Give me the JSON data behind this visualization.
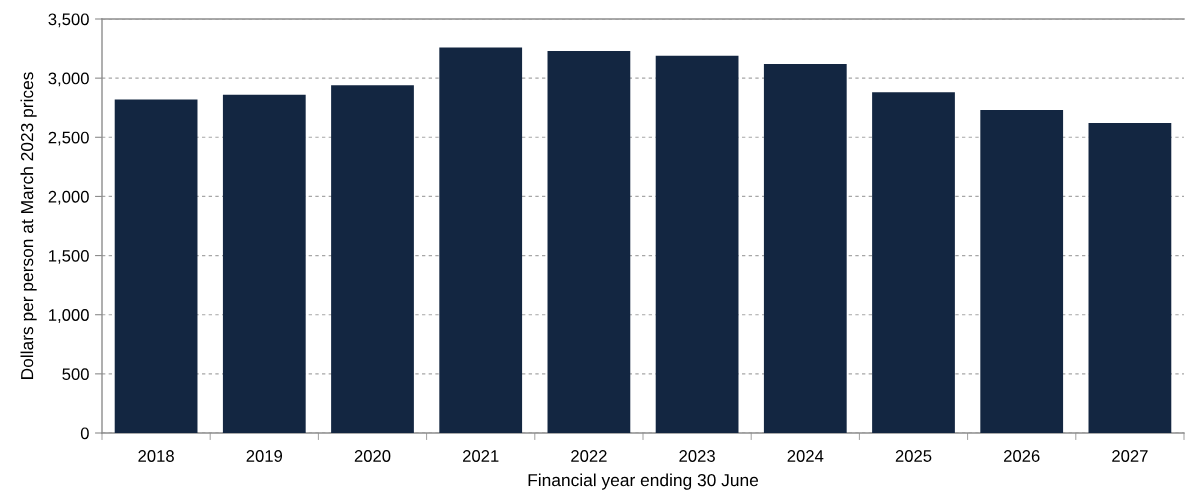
{
  "chart_data": {
    "type": "bar",
    "xlabel": "Financial year ending 30 June",
    "ylabel": "Dollars per person at March 2023 prices",
    "categories": [
      "2018",
      "2019",
      "2020",
      "2021",
      "2022",
      "2023",
      "2024",
      "2025",
      "2026",
      "2027"
    ],
    "values": [
      2820,
      2860,
      2940,
      3260,
      3230,
      3190,
      3120,
      2880,
      2730,
      2620
    ],
    "color": "#132641",
    "ylim": [
      0,
      3500
    ],
    "yticks": [
      0,
      {
        "value": 500,
        "label": "500"
      },
      {
        "value": 1000,
        "label": "1,000"
      },
      {
        "value": 1500,
        "label": "1,500"
      },
      {
        "value": 2000,
        "label": "2,000"
      },
      {
        "value": 2500,
        "label": "2,500"
      },
      {
        "value": 3000,
        "label": "3,000"
      },
      {
        "value": 3500,
        "label": "3,500"
      }
    ],
    "grid": "y"
  }
}
